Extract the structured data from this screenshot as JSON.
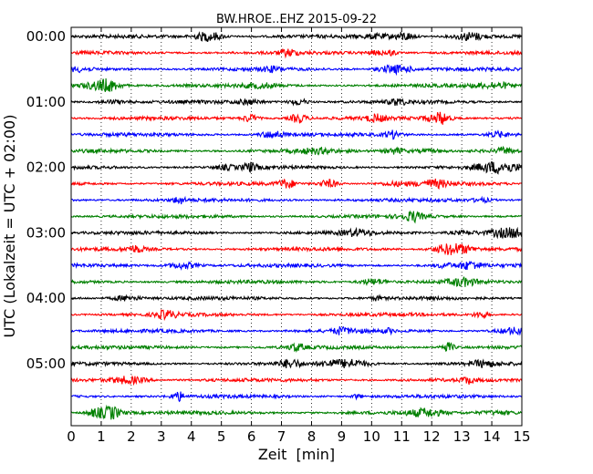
{
  "chart_data": {
    "type": "line",
    "title": "BW.HROE..EHZ 2015-09-22",
    "xlabel": "Zeit  [min]",
    "ylabel": "UTC (Lokalzeit = UTC + 02:00)",
    "xlim": [
      0,
      15
    ],
    "x_ticks": [
      0,
      1,
      2,
      3,
      4,
      5,
      6,
      7,
      8,
      9,
      10,
      11,
      12,
      13,
      14,
      15
    ],
    "y_ticks": [
      "00:00",
      "01:00",
      "02:00",
      "03:00",
      "04:00",
      "05:00"
    ],
    "grid": "vertical-dotted",
    "trace_interval_min": 15,
    "trace_colors": [
      "#000000",
      "#ff0000",
      "#0000ff",
      "#008000"
    ],
    "traces": [
      {
        "offset_min": 0,
        "color": "#000000"
      },
      {
        "offset_min": 15,
        "color": "#ff0000"
      },
      {
        "offset_min": 30,
        "color": "#0000ff"
      },
      {
        "offset_min": 45,
        "color": "#008000"
      },
      {
        "offset_min": 60,
        "color": "#000000"
      },
      {
        "offset_min": 75,
        "color": "#ff0000"
      },
      {
        "offset_min": 90,
        "color": "#0000ff"
      },
      {
        "offset_min": 105,
        "color": "#008000"
      },
      {
        "offset_min": 120,
        "color": "#000000"
      },
      {
        "offset_min": 135,
        "color": "#ff0000"
      },
      {
        "offset_min": 150,
        "color": "#0000ff"
      },
      {
        "offset_min": 165,
        "color": "#008000"
      },
      {
        "offset_min": 180,
        "color": "#000000"
      },
      {
        "offset_min": 195,
        "color": "#ff0000"
      },
      {
        "offset_min": 210,
        "color": "#0000ff"
      },
      {
        "offset_min": 225,
        "color": "#008000"
      },
      {
        "offset_min": 240,
        "color": "#000000"
      },
      {
        "offset_min": 255,
        "color": "#ff0000"
      },
      {
        "offset_min": 270,
        "color": "#0000ff"
      },
      {
        "offset_min": 285,
        "color": "#008000"
      },
      {
        "offset_min": 300,
        "color": "#000000"
      },
      {
        "offset_min": 315,
        "color": "#ff0000"
      },
      {
        "offset_min": 330,
        "color": "#0000ff"
      },
      {
        "offset_min": 345,
        "color": "#008000"
      }
    ]
  }
}
